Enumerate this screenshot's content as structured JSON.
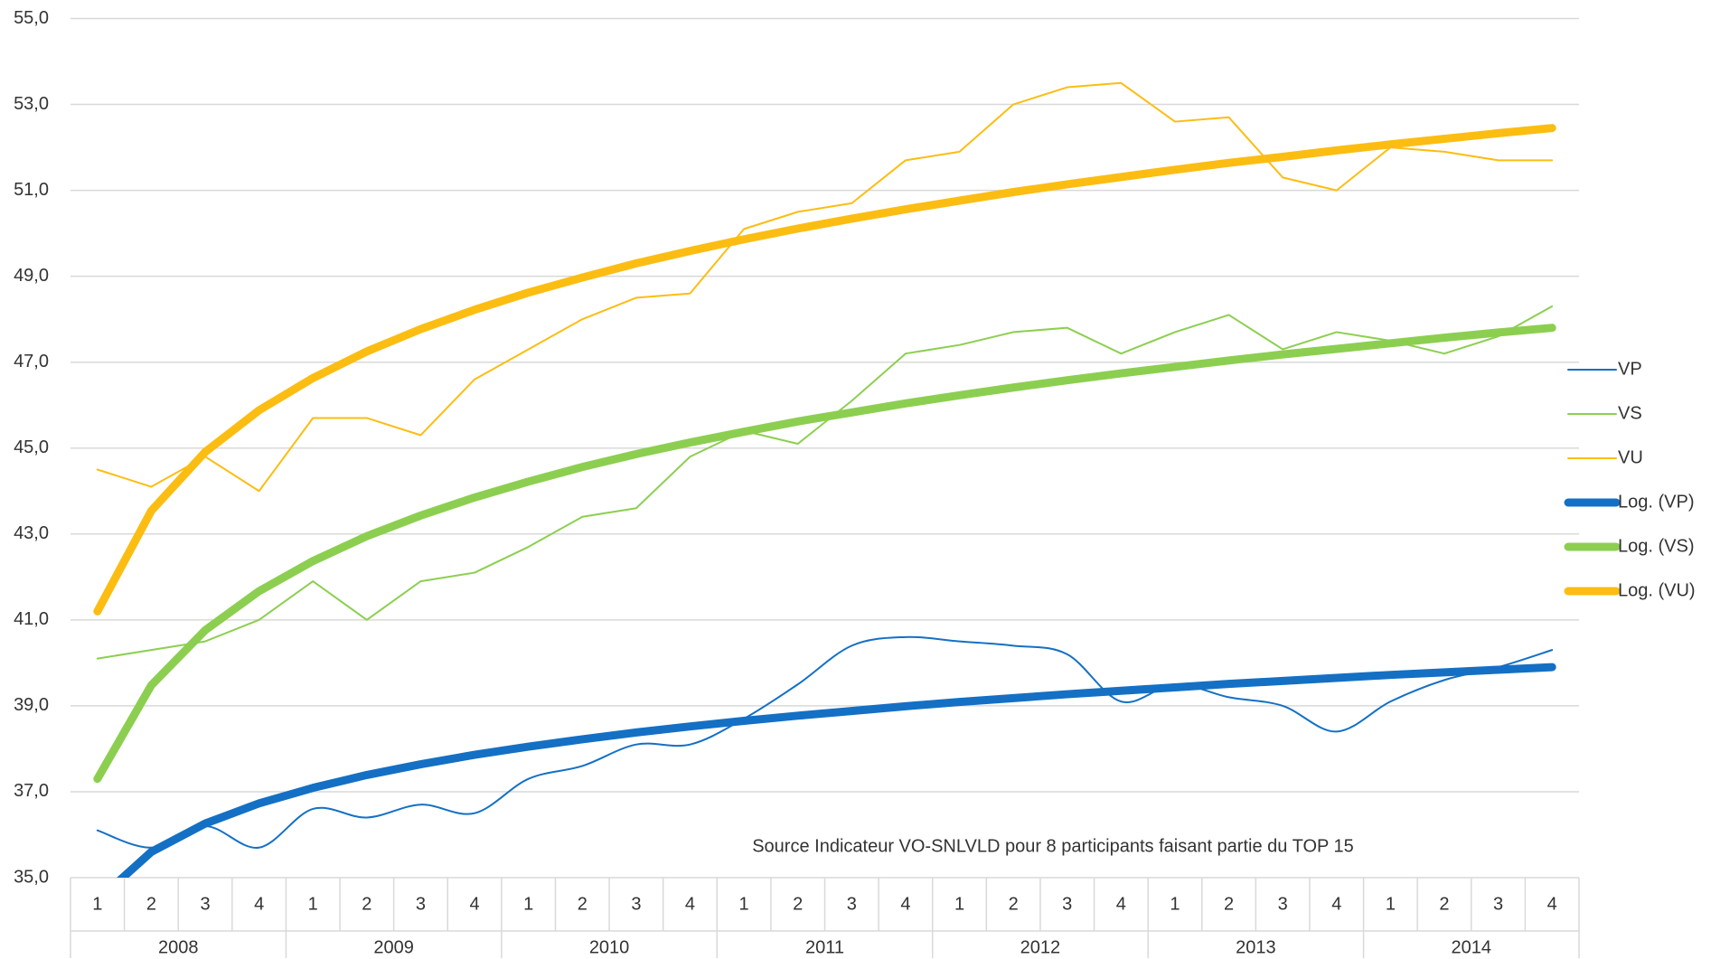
{
  "chart_data": {
    "type": "line",
    "annotation": "Source Indicateur VO-SNLVLD pour 8 participants faisant partie du TOP 15",
    "categories": [
      "1",
      "2",
      "3",
      "4",
      "1",
      "2",
      "3",
      "4",
      "1",
      "2",
      "3",
      "4",
      "1",
      "2",
      "3",
      "4",
      "1",
      "2",
      "3",
      "4",
      "1",
      "2",
      "3",
      "4",
      "1",
      "2",
      "3",
      "4"
    ],
    "groups": [
      "2008",
      "2009",
      "2010",
      "2011",
      "2012",
      "2013",
      "2014"
    ],
    "ylim": [
      35,
      55
    ],
    "yticks": [
      {
        "value": 35,
        "label": "35,0"
      },
      {
        "value": 37,
        "label": "37,0"
      },
      {
        "value": 39,
        "label": "39,0"
      },
      {
        "value": 41,
        "label": "41,0"
      },
      {
        "value": 43,
        "label": "43,0"
      },
      {
        "value": 45,
        "label": "45,0"
      },
      {
        "value": 47,
        "label": "47,0"
      },
      {
        "value": 49,
        "label": "49,0"
      },
      {
        "value": 51,
        "label": "51,0"
      },
      {
        "value": 53,
        "label": "53,0"
      },
      {
        "value": 55,
        "label": "55,0"
      }
    ],
    "grid": true,
    "legend": "right",
    "series": [
      {
        "name": "VP",
        "color": "#1470c4",
        "width": 2,
        "smooth": true,
        "values": [
          36.1,
          35.7,
          36.2,
          35.7,
          36.6,
          36.4,
          36.7,
          36.5,
          37.3,
          37.6,
          38.1,
          38.1,
          38.7,
          39.5,
          40.4,
          40.6,
          40.5,
          40.4,
          40.2,
          39.1,
          39.5,
          39.2,
          39.0,
          38.4,
          39.1,
          39.6,
          39.9,
          40.3
        ]
      },
      {
        "name": "VS",
        "color": "#8ccf50",
        "width": 2,
        "values": [
          40.1,
          40.3,
          40.5,
          41.0,
          41.9,
          41.0,
          41.9,
          42.1,
          42.7,
          43.4,
          43.6,
          44.8,
          45.4,
          45.1,
          46.1,
          47.2,
          47.4,
          47.7,
          47.8,
          47.2,
          47.7,
          48.1,
          47.3,
          47.7,
          47.5,
          47.2,
          47.6,
          48.3
        ]
      },
      {
        "name": "VU",
        "color": "#fcbd12",
        "width": 2,
        "values": [
          44.5,
          44.1,
          44.8,
          44.0,
          45.7,
          45.7,
          45.3,
          46.6,
          47.3,
          48.0,
          48.5,
          48.6,
          50.1,
          50.5,
          50.7,
          51.7,
          51.9,
          53.0,
          53.4,
          53.5,
          52.6,
          52.7,
          51.3,
          51.0,
          52.0,
          51.9,
          51.7,
          51.7
        ]
      },
      {
        "name": "Log. (VP)",
        "color": "#1470c4",
        "width": 9,
        "values": [
          34.47,
          35.6,
          36.26,
          36.73,
          37.09,
          37.39,
          37.64,
          37.86,
          38.05,
          38.22,
          38.38,
          38.52,
          38.65,
          38.77,
          38.88,
          38.99,
          39.09,
          39.18,
          39.27,
          39.35,
          39.43,
          39.51,
          39.58,
          39.65,
          39.72,
          39.78,
          39.84,
          39.9
        ]
      },
      {
        "name": "Log. (VS)",
        "color": "#8ccf50",
        "width": 9,
        "values": [
          37.3,
          39.48,
          40.76,
          41.67,
          42.37,
          42.95,
          43.43,
          43.85,
          44.22,
          44.56,
          44.86,
          45.13,
          45.38,
          45.62,
          45.83,
          46.04,
          46.23,
          46.41,
          46.58,
          46.74,
          46.89,
          47.04,
          47.18,
          47.31,
          47.44,
          47.57,
          47.69,
          47.8
        ]
      },
      {
        "name": "Log. (VU)",
        "color": "#fcbd12",
        "width": 9,
        "values": [
          41.2,
          43.54,
          44.91,
          45.88,
          46.63,
          47.25,
          47.77,
          48.22,
          48.62,
          48.97,
          49.3,
          49.59,
          49.86,
          50.11,
          50.34,
          50.56,
          50.76,
          50.96,
          51.14,
          51.31,
          51.48,
          51.64,
          51.78,
          51.93,
          52.07,
          52.2,
          52.33,
          52.45
        ]
      }
    ]
  }
}
